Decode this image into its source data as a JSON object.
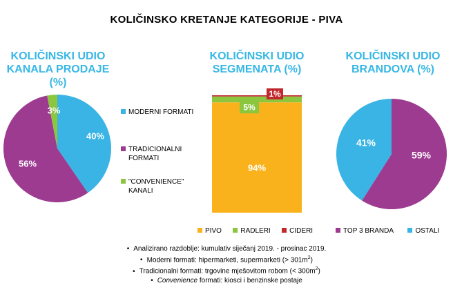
{
  "title": "KOLIČINSKO KRETANJE KATEGORIJE - PIVA",
  "colors": {
    "title_blue": "#37b7e6",
    "cyan": "#3ab4e4",
    "purple": "#9d3b91",
    "green": "#8cc63f",
    "orange": "#f9b21b",
    "red": "#c1272d"
  },
  "chart_data": [
    {
      "type": "pie",
      "title": "KOLIČINSKI UDIO\nKANALA PRODAJE (%)",
      "slices": [
        {
          "label": "MODERNI FORMATI",
          "value": 40,
          "display": "40%",
          "color": "#3ab4e4"
        },
        {
          "label": "TRADICIONALNI FORMATI",
          "value": 56,
          "display": "56%",
          "color": "#9d3b91"
        },
        {
          "label": "\"CONVENIENCE\" KANALI",
          "value": 3,
          "display": "3%",
          "color": "#8cc63f"
        }
      ],
      "legend": "right"
    },
    {
      "type": "bar",
      "stacked": true,
      "title": "KOLIČINSKI UDIO\nSEGMENATA (%)",
      "series": [
        {
          "name": "PIVO",
          "value": 94,
          "display": "94%",
          "color": "#f9b21b"
        },
        {
          "name": "RADLERI",
          "value": 5,
          "display": "5%",
          "color": "#8cc63f"
        },
        {
          "name": "CIDERI",
          "value": 1,
          "display": "1%",
          "color": "#c1272d"
        }
      ],
      "legend": "bottom"
    },
    {
      "type": "pie",
      "title": "KOLIČINSKI UDIO\nBRANDOVA (%)",
      "slices": [
        {
          "label": "TOP 3 BRANDA",
          "value": 59,
          "display": "59%",
          "color": "#9d3b91"
        },
        {
          "label": "OSTALI",
          "value": 41,
          "display": "41%",
          "color": "#3ab4e4"
        }
      ],
      "legend": "bottom"
    }
  ],
  "legend1": {
    "items": [
      {
        "line1": "MODERNI FORMATI",
        "line2": ""
      },
      {
        "line1": "TRADICIONALNI",
        "line2": "FORMATI"
      },
      {
        "line1": "\"CONVENIENCE\"",
        "line2": "KANALI"
      }
    ]
  },
  "notes": {
    "line1": "Analizirano razdoblje: kumulativ siječanj 2019. - prosinac 2019.",
    "line2_pre": "Moderni formati: hipermarketi, supermarketi (> 301m",
    "line2_sup": "2",
    "line2_post": ")",
    "line3_pre": "Tradicionalni formati: trgovine mješovitom robom (< 300m",
    "line3_sup": "2",
    "line3_post": ")",
    "line4_italic": "Convenience",
    "line4_rest": " formati: kiosci i benzinske postaje"
  }
}
